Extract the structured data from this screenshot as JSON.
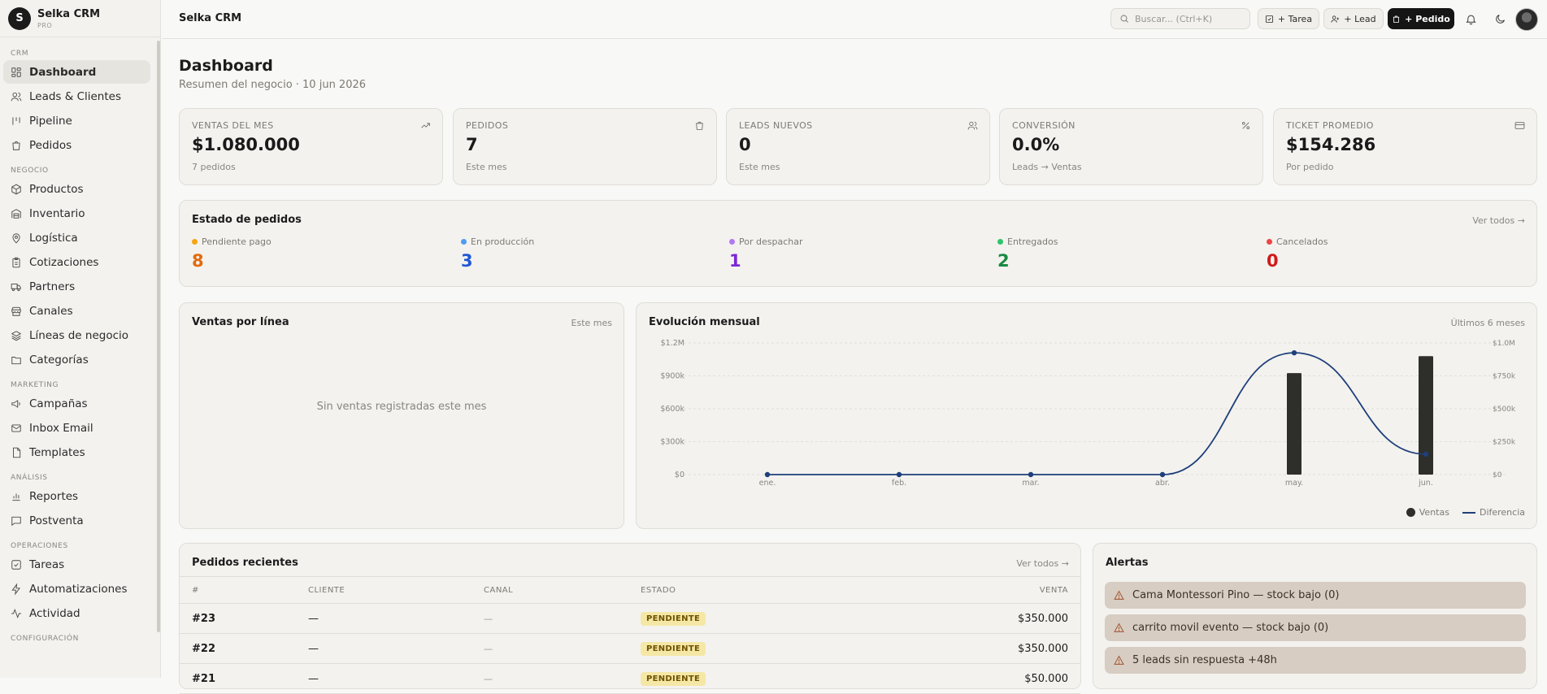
{
  "brand": {
    "logo_letter": "S",
    "name": "Selka CRM",
    "plan": "PRO"
  },
  "sidebar": {
    "sections": [
      {
        "title": "CRM",
        "items": [
          {
            "label": "Dashboard",
            "icon": "layout-dashboard-icon",
            "active": true
          },
          {
            "label": "Leads & Clientes",
            "icon": "users-icon"
          },
          {
            "label": "Pipeline",
            "icon": "columns-icon"
          },
          {
            "label": "Pedidos",
            "icon": "shopping-bag-icon"
          }
        ]
      },
      {
        "title": "NEGOCIO",
        "items": [
          {
            "label": "Productos",
            "icon": "package-icon"
          },
          {
            "label": "Inventario",
            "icon": "warehouse-icon"
          },
          {
            "label": "Logística",
            "icon": "map-pin-icon"
          },
          {
            "label": "Cotizaciones",
            "icon": "clipboard-icon"
          },
          {
            "label": "Partners",
            "icon": "truck-icon"
          },
          {
            "label": "Canales",
            "icon": "store-icon"
          },
          {
            "label": "Líneas de negocio",
            "icon": "layers-icon"
          },
          {
            "label": "Categorías",
            "icon": "folder-icon"
          }
        ]
      },
      {
        "title": "MARKETING",
        "items": [
          {
            "label": "Campañas",
            "icon": "megaphone-icon"
          },
          {
            "label": "Inbox Email",
            "icon": "mail-icon"
          },
          {
            "label": "Templates",
            "icon": "file-icon"
          }
        ]
      },
      {
        "title": "ANÁLISIS",
        "items": [
          {
            "label": "Reportes",
            "icon": "bar-chart-icon"
          },
          {
            "label": "Postventa",
            "icon": "message-square-icon"
          }
        ]
      },
      {
        "title": "OPERACIONES",
        "items": [
          {
            "label": "Tareas",
            "icon": "check-square-icon"
          },
          {
            "label": "Automatizaciones",
            "icon": "zap-icon"
          },
          {
            "label": "Actividad",
            "icon": "activity-icon"
          }
        ]
      },
      {
        "title": "CONFIGURACIÓN",
        "items": []
      }
    ]
  },
  "topbar": {
    "title": "Selka CRM",
    "search_placeholder": "Buscar... (Ctrl+K)",
    "task_button": "+ Tarea",
    "lead_button": "+ Lead",
    "order_button": "+ Pedido"
  },
  "page": {
    "title": "Dashboard",
    "subtitle": "Resumen del negocio · 10 jun 2026"
  },
  "kpis": [
    {
      "label": "VENTAS DEL MES",
      "value": "$1.080.000",
      "sub": "7 pedidos",
      "icon": "trending-up-icon"
    },
    {
      "label": "PEDIDOS",
      "value": "7",
      "sub": "Este mes",
      "icon": "shopping-bag-icon"
    },
    {
      "label": "LEADS NUEVOS",
      "value": "0",
      "sub": "Este mes",
      "icon": "users-icon"
    },
    {
      "label": "CONVERSIÓN",
      "value": "0.0%",
      "sub": "Leads → Ventas",
      "icon": "percent-icon"
    },
    {
      "label": "TICKET PROMEDIO",
      "value": "$154.286",
      "sub": "Por pedido",
      "icon": "credit-card-icon"
    }
  ],
  "order_status": {
    "title": "Estado de pedidos",
    "link": "Ver todos →",
    "items": [
      {
        "label": "Pendiente pago",
        "count": "8",
        "color": "#f5a511",
        "count_color": "#e36a0c"
      },
      {
        "label": "En producción",
        "count": "3",
        "color": "#4f9bf2",
        "count_color": "#2158d6"
      },
      {
        "label": "Por despachar",
        "count": "1",
        "color": "#b277f2",
        "count_color": "#7b28d6"
      },
      {
        "label": "Entregados",
        "count": "2",
        "color": "#2ec46c",
        "count_color": "#188a40"
      },
      {
        "label": "Cancelados",
        "count": "0",
        "color": "#ef4444",
        "count_color": "#cf1b1b"
      }
    ]
  },
  "sales_by_line": {
    "title": "Ventas por línea",
    "period": "Este mes",
    "empty": "Sin ventas registradas este mes"
  },
  "monthly": {
    "title": "Evolución mensual",
    "period": "Últimos 6 meses"
  },
  "chart_data": {
    "type": "bar",
    "categories": [
      "ene.",
      "feb.",
      "mar.",
      "abr.",
      "may.",
      "jun."
    ],
    "left_axis_ticks": [
      "$0",
      "$300k",
      "$600k",
      "$900k",
      "$1.2M"
    ],
    "right_axis_ticks": [
      "$0",
      "$250k",
      "$500k",
      "$750k",
      "$1.0M"
    ],
    "ylim_left": [
      0,
      1200000
    ],
    "ylim_right": [
      0,
      1000000
    ],
    "grid": true,
    "legend_position": "bottom-right",
    "series": [
      {
        "name": "Ventas",
        "kind": "bar",
        "axis": "left",
        "color": "#2e2e2b",
        "values": [
          0,
          0,
          0,
          0,
          925000,
          1080000
        ]
      },
      {
        "name": "Diferencia",
        "kind": "line",
        "axis": "right",
        "color": "#1e3f7a",
        "values": [
          0,
          0,
          0,
          0,
          925000,
          155000
        ]
      }
    ]
  },
  "recent_orders": {
    "title": "Pedidos recientes",
    "link": "Ver todos →",
    "columns": [
      "#",
      "CLIENTE",
      "CANAL",
      "ESTADO",
      "VENTA"
    ],
    "rows": [
      {
        "id": "#23",
        "client": "—",
        "channel": "—",
        "status": "PENDIENTE",
        "amount": "$350.000"
      },
      {
        "id": "#22",
        "client": "—",
        "channel": "—",
        "status": "PENDIENTE",
        "amount": "$350.000"
      },
      {
        "id": "#21",
        "client": "—",
        "channel": "—",
        "status": "PENDIENTE",
        "amount": "$50.000"
      }
    ]
  },
  "alerts": {
    "title": "Alertas",
    "items": [
      "Cama Montessori Pino — stock bajo (0)",
      "carrito movil evento — stock bajo (0)",
      "5 leads sin respuesta +48h"
    ]
  }
}
